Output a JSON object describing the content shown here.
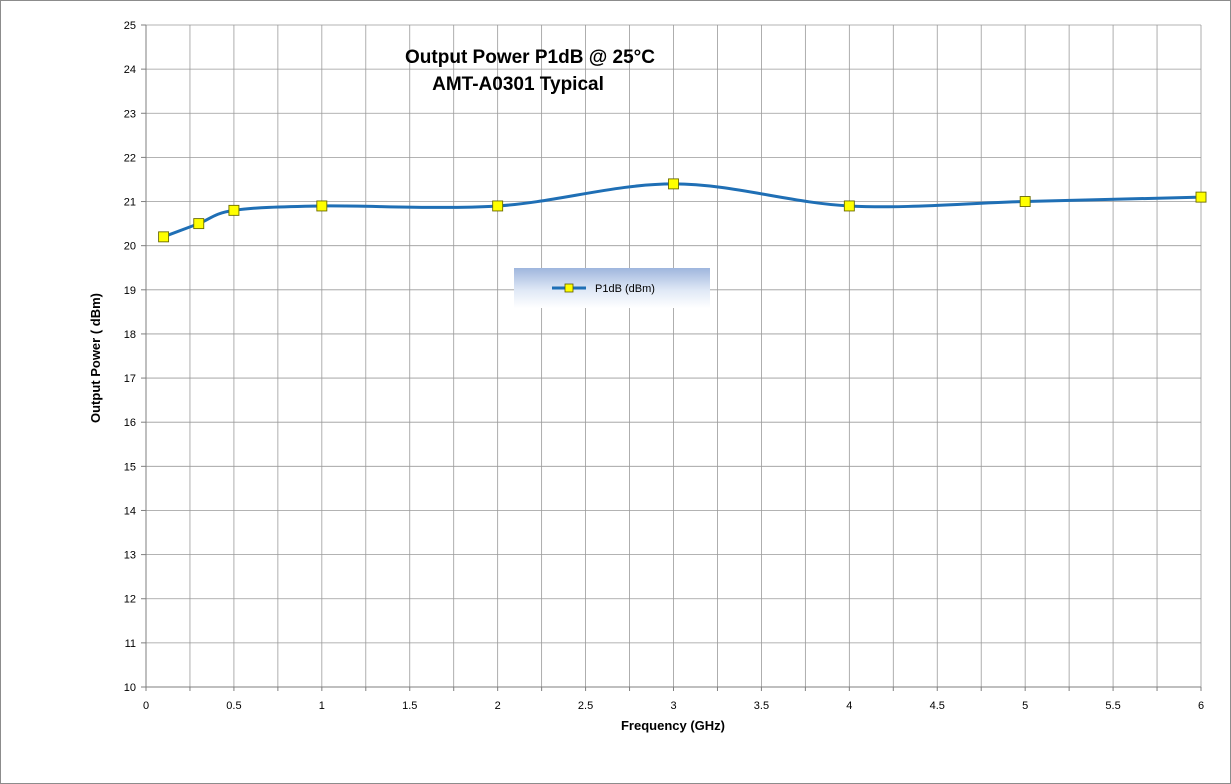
{
  "chart_data": {
    "type": "line",
    "title_lines": [
      "Output Power P1dB @ 25°C",
      "AMT-A0301 Typical"
    ],
    "xlabel": "Frequency (GHz)",
    "ylabel": "Output Power ( dBm)",
    "xlim": [
      0,
      6
    ],
    "ylim": [
      10,
      25
    ],
    "x_major_ticks": [
      "0",
      "0.5",
      "1",
      "1.5",
      "2",
      "2.5",
      "3",
      "3.5",
      "4",
      "4.5",
      "5",
      "5.5",
      "6"
    ],
    "y_ticks": [
      "10",
      "11",
      "12",
      "13",
      "14",
      "15",
      "16",
      "17",
      "18",
      "19",
      "20",
      "21",
      "22",
      "23",
      "24",
      "25"
    ],
    "grid": true,
    "legend_placement": "center",
    "series": [
      {
        "name": "P1dB (dBm)",
        "color": "#1f6fb5",
        "marker_color": "#ffff00",
        "smooth": true,
        "x": [
          0.1,
          0.3,
          0.5,
          1,
          2,
          3,
          4,
          5,
          6
        ],
        "y": [
          20.2,
          20.5,
          20.8,
          20.9,
          20.9,
          21.4,
          20.9,
          21.0,
          21.1
        ]
      }
    ]
  }
}
